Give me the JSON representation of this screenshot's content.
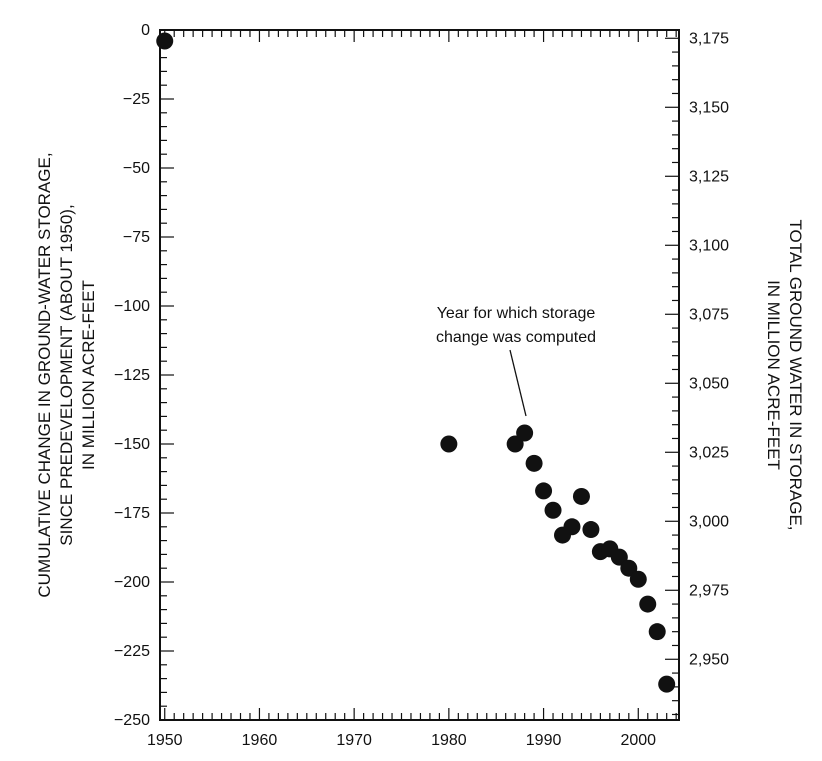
{
  "chart_data": {
    "type": "scatter",
    "title": "",
    "xlabel": "",
    "ylabel": "CUMULATIVE CHANGE IN GROUND-WATER STORAGE, SINCE PREDEVELOPMENT (ABOUT 1950), IN MILLION ACRE-FEET",
    "ylabel_lines": [
      "CUMULATIVE CHANGE IN GROUND-WATER STORAGE,",
      "SINCE PREDEVELOPMENT (ABOUT 1950),",
      "IN MILLION ACRE-FEET"
    ],
    "y2label": "TOTAL GROUND WATER IN STORAGE, IN MILLION ACRE-FEET",
    "y2label_lines": [
      "TOTAL GROUND WATER IN STORAGE,",
      "IN MILLION ACRE-FEET"
    ],
    "xlim": [
      1949.5,
      2004.3
    ],
    "ylim": [
      -250,
      0
    ],
    "y2lim": [
      2928,
      3178
    ],
    "x_ticks": [
      1950,
      1960,
      1970,
      1980,
      1990,
      2000
    ],
    "y_ticks": [
      0,
      -25,
      -50,
      -75,
      -100,
      -125,
      -150,
      -175,
      -200,
      -225,
      -250
    ],
    "y2_ticks": [
      "3,175",
      "3,150",
      "3,125",
      "3,100",
      "3,075",
      "3,050",
      "3,025",
      "3,000",
      "2,975",
      "2,950"
    ],
    "y2_tick_values": [
      3175,
      3150,
      3125,
      3100,
      3075,
      3050,
      3025,
      3000,
      2975,
      2950
    ],
    "grid": false,
    "annotation": {
      "lines": [
        "Year for which storage",
        "change was computed"
      ],
      "points_to": {
        "x": 1988,
        "y": -146
      }
    },
    "points": [
      {
        "x": 1950,
        "y": -4
      },
      {
        "x": 1980,
        "y": -150
      },
      {
        "x": 1987,
        "y": -150
      },
      {
        "x": 1988,
        "y": -146
      },
      {
        "x": 1989,
        "y": -157
      },
      {
        "x": 1990,
        "y": -167
      },
      {
        "x": 1991,
        "y": -174
      },
      {
        "x": 1992,
        "y": -183
      },
      {
        "x": 1993,
        "y": -180
      },
      {
        "x": 1994,
        "y": -169
      },
      {
        "x": 1995,
        "y": -181
      },
      {
        "x": 1996,
        "y": -189
      },
      {
        "x": 1997,
        "y": -188
      },
      {
        "x": 1998,
        "y": -191
      },
      {
        "x": 1999,
        "y": -195
      },
      {
        "x": 2000,
        "y": -199
      },
      {
        "x": 2001,
        "y": -208
      },
      {
        "x": 2002,
        "y": -218
      },
      {
        "x": 2003,
        "y": -237
      }
    ]
  }
}
